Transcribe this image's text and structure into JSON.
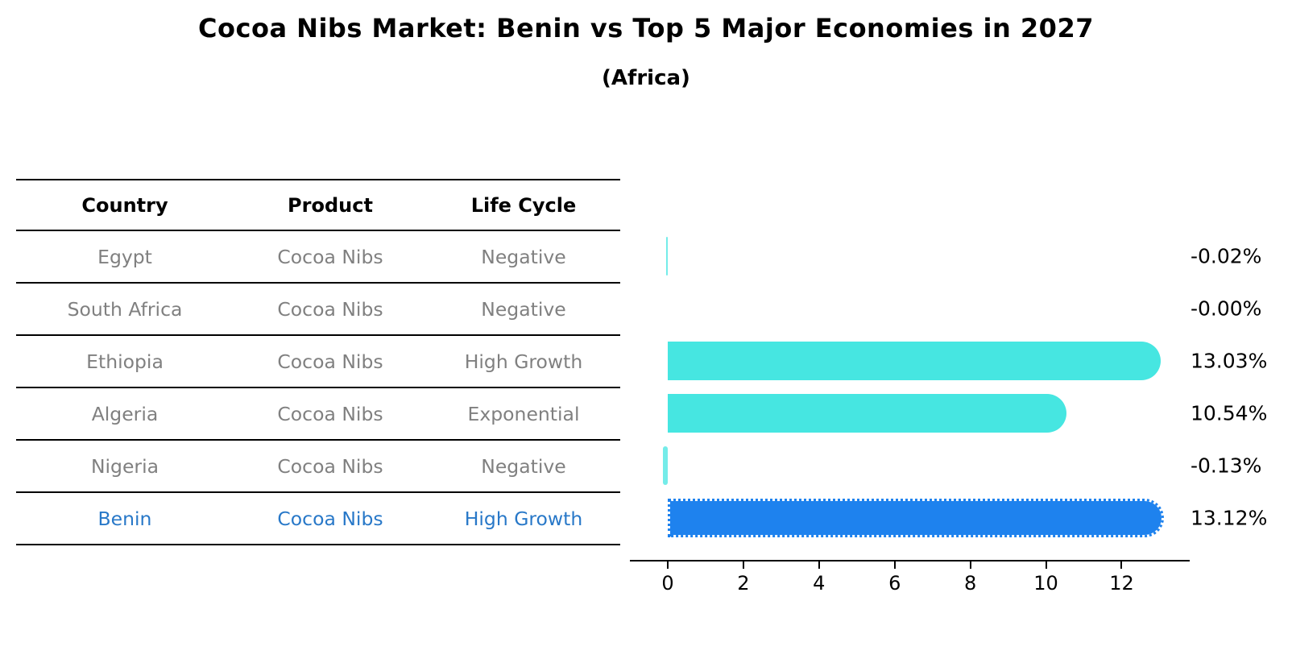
{
  "header": {
    "title": "Cocoa Nibs Market: Benin vs Top 5 Major Economies in 2027",
    "subtitle": "(Africa)"
  },
  "table": {
    "columns": [
      "Country",
      "Product",
      "Life Cycle"
    ],
    "rows": [
      {
        "country": "Egypt",
        "product": "Cocoa Nibs",
        "life_cycle": "Negative",
        "highlight": false
      },
      {
        "country": "South Africa",
        "product": "Cocoa Nibs",
        "life_cycle": "Negative",
        "highlight": false
      },
      {
        "country": "Ethiopia",
        "product": "Cocoa Nibs",
        "life_cycle": "High Growth",
        "highlight": false
      },
      {
        "country": "Algeria",
        "product": "Cocoa Nibs",
        "life_cycle": "Exponential",
        "highlight": false
      },
      {
        "country": "Nigeria",
        "product": "Cocoa Nibs",
        "life_cycle": "Negative",
        "highlight": false
      },
      {
        "country": "Benin",
        "product": "Cocoa Nibs",
        "life_cycle": "High Growth",
        "highlight": true
      }
    ]
  },
  "chart_data": {
    "type": "bar",
    "orientation": "horizontal",
    "title": "Cocoa Nibs Market: Benin vs Top 5 Major Economies in 2027",
    "subtitle": "(Africa)",
    "categories": [
      "Egypt",
      "South Africa",
      "Ethiopia",
      "Algeria",
      "Nigeria",
      "Benin"
    ],
    "values": [
      -0.02,
      -0.0,
      13.03,
      10.54,
      -0.13,
      13.12
    ],
    "value_labels": [
      "-0.02%",
      "-0.00%",
      "13.03%",
      "10.54%",
      "-0.13%",
      "13.12%"
    ],
    "xticks": [
      0,
      2,
      4,
      6,
      8,
      10,
      12
    ],
    "xlim": [
      -1.0,
      13.8
    ],
    "grid": false,
    "legend": "none",
    "highlight_index": 5
  },
  "colors": {
    "default_bar": "#46E6E1",
    "highlight_bar": "#1E82EE",
    "highlight_text": "#2878C8",
    "row_text": "#808080",
    "header_text": "#000000",
    "axis": "#000000"
  }
}
